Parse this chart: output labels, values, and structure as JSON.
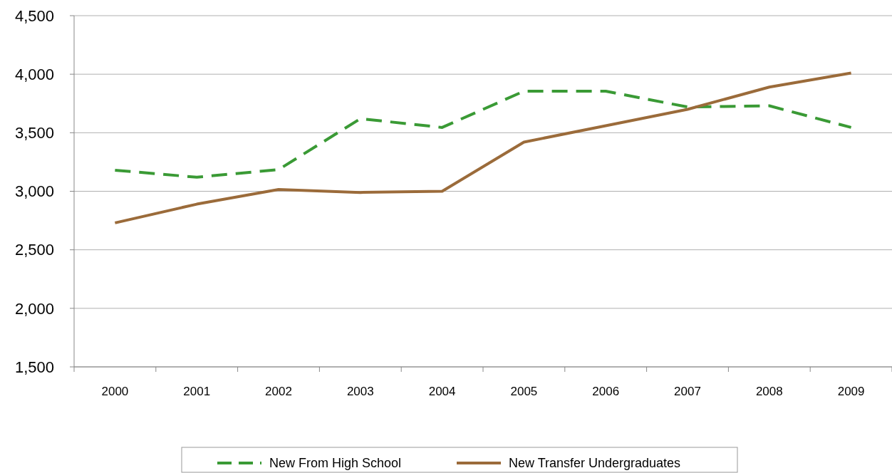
{
  "chart_data": {
    "type": "line",
    "categories": [
      "2000",
      "2001",
      "2002",
      "2003",
      "2004",
      "2005",
      "2006",
      "2007",
      "2008",
      "2009"
    ],
    "series": [
      {
        "name": "New From High School",
        "color": "#3a9a35",
        "line_style": "dashed",
        "values": [
          3180,
          3120,
          3185,
          3620,
          3545,
          3855,
          3855,
          3720,
          3730,
          3545
        ]
      },
      {
        "name": "New Transfer Undergraduates",
        "color": "#9b6b3a",
        "line_style": "solid",
        "values": [
          2730,
          2890,
          3015,
          2990,
          3000,
          3420,
          3560,
          3700,
          3890,
          4010
        ]
      }
    ],
    "ylim": [
      1500,
      4500
    ],
    "yticks": [
      {
        "value": 1500,
        "label": "1,500"
      },
      {
        "value": 2000,
        "label": "2,000"
      },
      {
        "value": 2500,
        "label": "2,500"
      },
      {
        "value": 3000,
        "label": "3,000"
      },
      {
        "value": 3500,
        "label": "3,500"
      },
      {
        "value": 4000,
        "label": "4,000"
      },
      {
        "value": 4500,
        "label": "4,500"
      }
    ],
    "grid": "y",
    "legend": "bottom",
    "marker": "none"
  }
}
